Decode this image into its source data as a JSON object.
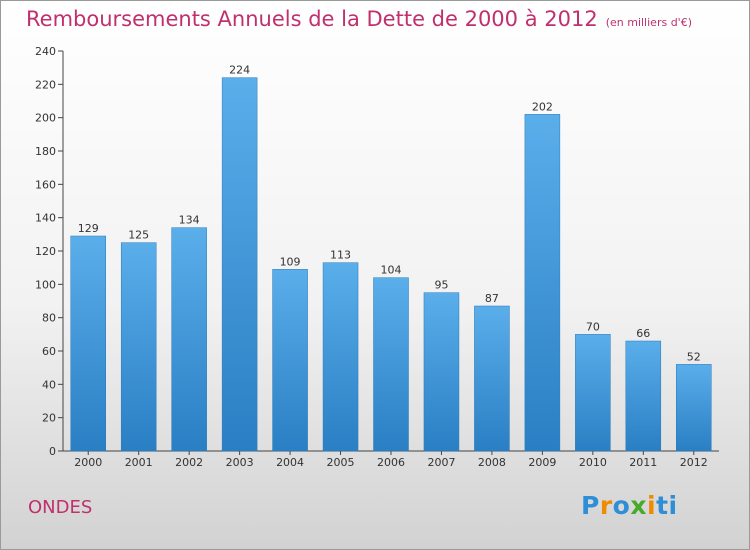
{
  "chart_data": {
    "type": "bar",
    "title": "Remboursements Annuels de la Dette de 2000 à 2012",
    "subtitle": "(en milliers d'€)",
    "xlabel": "",
    "ylabel": "",
    "categories": [
      "2000",
      "2001",
      "2002",
      "2003",
      "2004",
      "2005",
      "2006",
      "2007",
      "2008",
      "2009",
      "2010",
      "2011",
      "2012"
    ],
    "values": [
      129,
      125,
      134,
      224,
      109,
      113,
      104,
      95,
      87,
      202,
      70,
      66,
      52
    ],
    "ylim": [
      0,
      240
    ],
    "yticks": [
      0,
      20,
      40,
      60,
      80,
      100,
      120,
      140,
      160,
      180,
      200,
      220,
      240
    ],
    "grid": false,
    "data_labels": true,
    "bar_color": "#4a9fe0"
  },
  "footer": {
    "town": "ONDES",
    "brand": "Proxiti"
  },
  "colors": {
    "title": "#c0306e",
    "brand_letters": [
      "#2f8fd6",
      "#f08a00",
      "#2f8fd6",
      "#4aa82a",
      "#f08a00",
      "#2f8fd6",
      "#2f8fd6"
    ]
  }
}
